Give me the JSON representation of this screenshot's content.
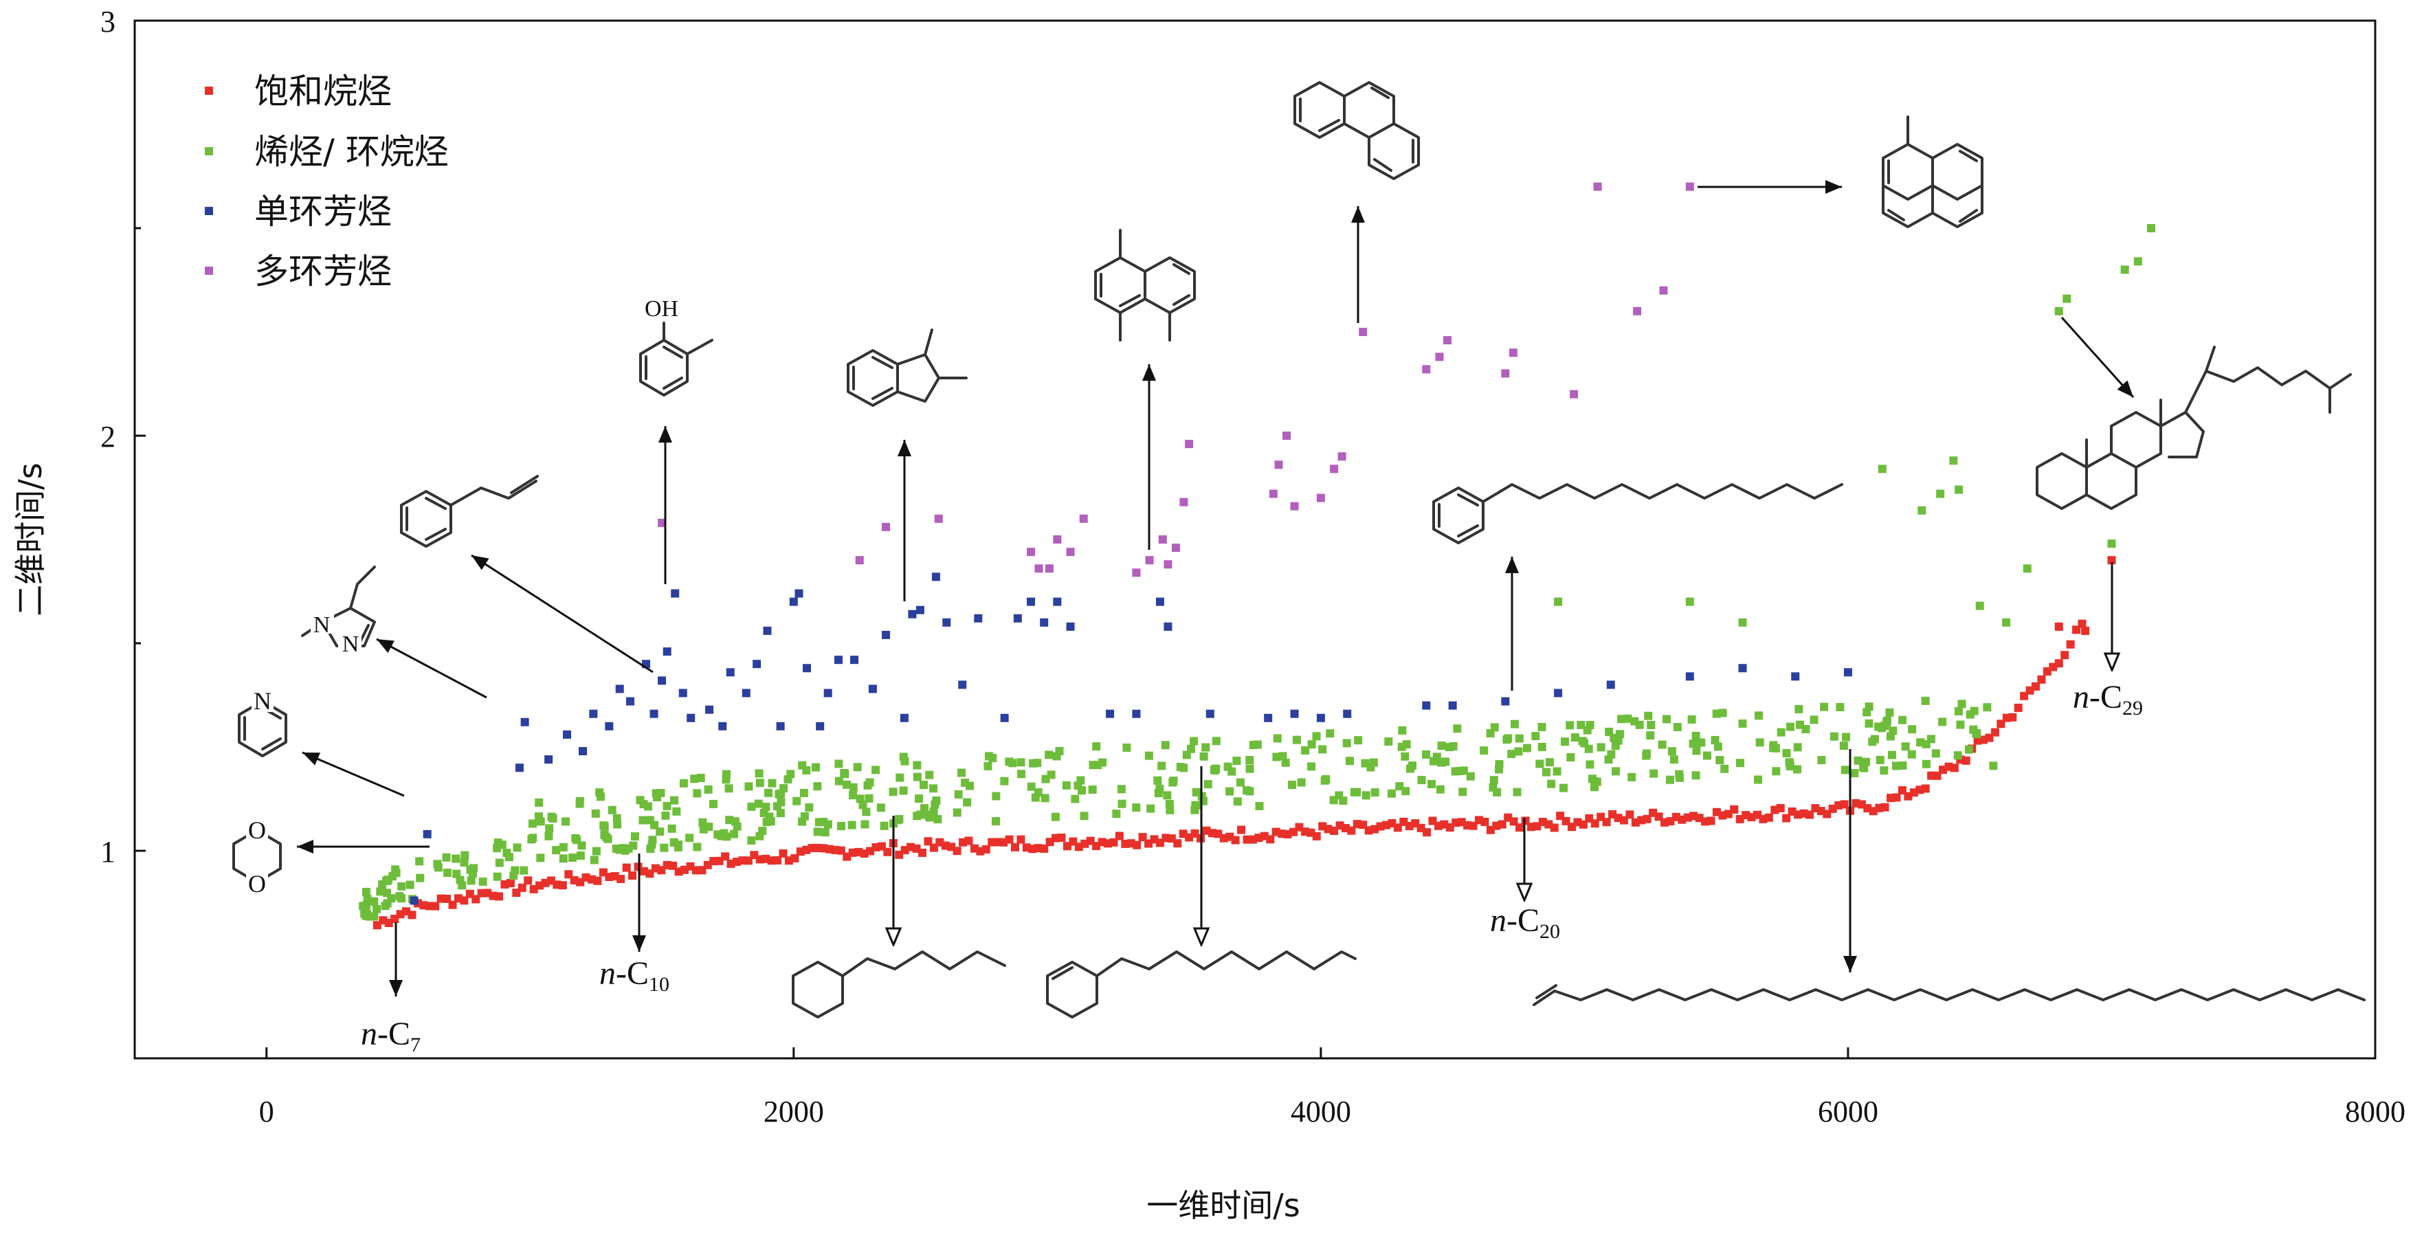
{
  "chart_data": {
    "type": "scatter",
    "xlabel": "一维时间/s",
    "ylabel": "二维时间/s",
    "xlim": [
      -500,
      8000
    ],
    "ylim": [
      0.5,
      3.0
    ],
    "xticks": [
      "0",
      "2000",
      "4000",
      "6000",
      "8000"
    ],
    "yticks": [
      "1",
      "2",
      "3"
    ],
    "legend_position": "top-left",
    "series": [
      {
        "name": "饱和烷烃",
        "color": "#e8302a",
        "marker": "square"
      },
      {
        "name": "烯烃/ 环烷烃",
        "color": "#6dbd3a",
        "marker": "square"
      },
      {
        "name": "单环芳烃",
        "color": "#2b3f9e",
        "marker": "square"
      },
      {
        "name": "多环芳烃",
        "color": "#b25fbd",
        "marker": "square"
      }
    ],
    "blue_points": [
      [
        560,
        0.88
      ],
      [
        610,
        1.04
      ],
      [
        960,
        1.2
      ],
      [
        980,
        1.31
      ],
      [
        1070,
        1.22
      ],
      [
        1140,
        1.28
      ],
      [
        1200,
        1.24
      ],
      [
        1240,
        1.33
      ],
      [
        1300,
        1.3
      ],
      [
        1340,
        1.39
      ],
      [
        1380,
        1.36
      ],
      [
        1440,
        1.45
      ],
      [
        1470,
        1.33
      ],
      [
        1500,
        1.41
      ],
      [
        1520,
        1.48
      ],
      [
        1550,
        1.62
      ],
      [
        1580,
        1.38
      ],
      [
        1610,
        1.32
      ],
      [
        1680,
        1.34
      ],
      [
        1730,
        1.3
      ],
      [
        1760,
        1.43
      ],
      [
        1820,
        1.38
      ],
      [
        1860,
        1.45
      ],
      [
        1900,
        1.53
      ],
      [
        1950,
        1.3
      ],
      [
        2000,
        1.6
      ],
      [
        2020,
        1.62
      ],
      [
        2050,
        1.44
      ],
      [
        2100,
        1.3
      ],
      [
        2130,
        1.38
      ],
      [
        2170,
        1.46
      ],
      [
        2230,
        1.46
      ],
      [
        2300,
        1.39
      ],
      [
        2350,
        1.52
      ],
      [
        2420,
        1.32
      ],
      [
        2450,
        1.57
      ],
      [
        2480,
        1.58
      ],
      [
        2540,
        1.66
      ],
      [
        2580,
        1.55
      ],
      [
        2640,
        1.4
      ],
      [
        2700,
        1.56
      ],
      [
        2800,
        1.32
      ],
      [
        2850,
        1.56
      ],
      [
        2900,
        1.6
      ],
      [
        2950,
        1.55
      ],
      [
        3000,
        1.6
      ],
      [
        3050,
        1.54
      ],
      [
        3200,
        1.33
      ],
      [
        3300,
        1.33
      ],
      [
        3390,
        1.6
      ],
      [
        3420,
        1.54
      ],
      [
        3580,
        1.33
      ],
      [
        3800,
        1.32
      ],
      [
        3900,
        1.33
      ],
      [
        4000,
        1.32
      ],
      [
        4100,
        1.33
      ],
      [
        4400,
        1.35
      ],
      [
        4500,
        1.35
      ],
      [
        4700,
        1.36
      ],
      [
        4900,
        1.38
      ],
      [
        5100,
        1.4
      ],
      [
        5400,
        1.42
      ],
      [
        5600,
        1.44
      ],
      [
        5800,
        1.42
      ],
      [
        6000,
        1.43
      ]
    ],
    "purple_points": [
      [
        1500,
        1.79
      ],
      [
        2250,
        1.7
      ],
      [
        2350,
        1.78
      ],
      [
        2550,
        1.8
      ],
      [
        2900,
        1.72
      ],
      [
        2930,
        1.68
      ],
      [
        2970,
        1.68
      ],
      [
        3000,
        1.75
      ],
      [
        3050,
        1.72
      ],
      [
        3100,
        1.8
      ],
      [
        3300,
        1.67
      ],
      [
        3350,
        1.7
      ],
      [
        3400,
        1.75
      ],
      [
        3420,
        1.69
      ],
      [
        3450,
        1.73
      ],
      [
        3480,
        1.84
      ],
      [
        3500,
        1.98
      ],
      [
        3820,
        1.86
      ],
      [
        3840,
        1.93
      ],
      [
        3870,
        2.0
      ],
      [
        3900,
        1.83
      ],
      [
        4000,
        1.85
      ],
      [
        4050,
        1.92
      ],
      [
        4080,
        1.95
      ],
      [
        4160,
        2.25
      ],
      [
        4400,
        2.16
      ],
      [
        4450,
        2.19
      ],
      [
        4480,
        2.23
      ],
      [
        4700,
        2.15
      ],
      [
        4730,
        2.2
      ],
      [
        4960,
        2.1
      ],
      [
        5050,
        2.6
      ],
      [
        5200,
        2.3
      ],
      [
        5300,
        2.35
      ],
      [
        5400,
        2.6
      ]
    ],
    "annotations": [
      "OH",
      "n-C7",
      "n-C10",
      "n-C20",
      "n-C29"
    ]
  },
  "labels": {
    "nc7_n": "n",
    "nc7_c": "-C",
    "nc7_sub": "7",
    "nc10_n": "n",
    "nc10_c": "-C",
    "nc10_sub": "10",
    "nc20_n": "n",
    "nc20_c": "-C",
    "nc20_sub": "20",
    "nc29_n": "n",
    "nc29_c": "-C",
    "nc29_sub": "29",
    "oh": "OH",
    "N": "N",
    "O": "O"
  }
}
